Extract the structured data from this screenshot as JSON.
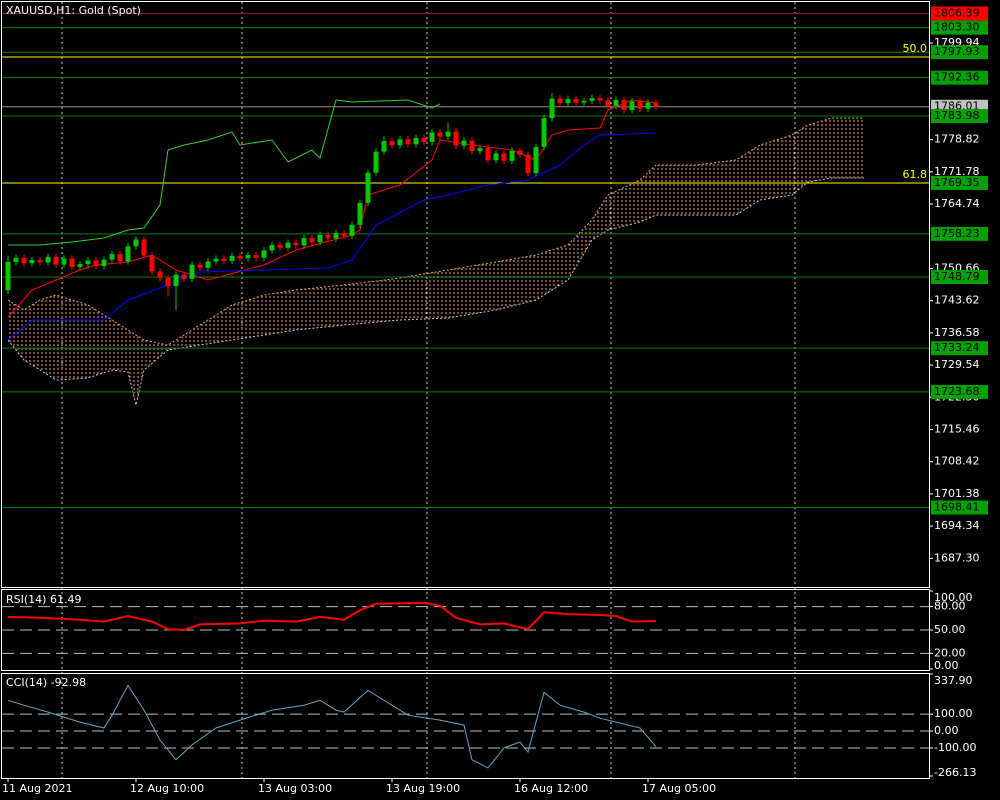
{
  "chart_data": [
    {
      "type": "candlestick",
      "title": "XAUUSD,H1:  Gold (Spot)",
      "xlim": [
        -1,
        115.25
      ],
      "xticks": [
        {
          "value": 0,
          "label": "11 Aug 2021"
        },
        {
          "value": 16,
          "label": "12 Aug 10:00"
        },
        {
          "value": 32,
          "label": "13 Aug 03:00"
        },
        {
          "value": 48,
          "label": "13 Aug 19:00"
        },
        {
          "value": 64,
          "label": "16 Aug 12:00"
        },
        {
          "value": 80,
          "label": "17 Aug 05:00"
        }
      ],
      "ylim": [
        1680.82,
        1809.34
      ],
      "yticks": [
        1799.94,
        1778.82,
        1771.78,
        1764.74,
        1750.66,
        1743.62,
        1736.58,
        1729.54,
        {
          "value": 1722.5,
          "label": "1722.50"
        },
        1715.46,
        1708.42,
        1701.38,
        1694.34,
        {
          "value": 1687.3,
          "label": "1687.30"
        }
      ],
      "up_color": "#00c800",
      "down_color": "#ff0000",
      "open": [
        1745.9,
        1752.1,
        1753.0,
        1751.8,
        1752.5,
        1752.0,
        1753.2,
        1751.5,
        1752.8,
        1751.0,
        1751.6,
        1752.4,
        1751.2,
        1752.6,
        1753.8,
        1752.2,
        1755.5,
        1757.0,
        1753.5,
        1750.0,
        1748.6,
        1746.8,
        1749.3,
        1748.4,
        1751.5,
        1750.8,
        1752.2,
        1752.8,
        1752.3,
        1753.4,
        1752.9,
        1753.6,
        1753.0,
        1754.6,
        1755.8,
        1755.2,
        1756.3,
        1755.7,
        1757.3,
        1756.4,
        1758.0,
        1757.2,
        1758.4,
        1757.8,
        1760.2,
        1765.0,
        1771.6,
        1776.2,
        1778.5,
        1777.6,
        1778.9,
        1777.8,
        1779.2,
        1778.3,
        1780.4,
        1779.5,
        1780.6,
        1777.5,
        1778.6,
        1776.3,
        1777.0,
        1774.3,
        1775.8,
        1774.2,
        1776.4,
        1775.5,
        1771.5,
        1777.2,
        1783.5,
        1787.8,
        1786.8,
        1787.7,
        1786.9,
        1787.3,
        1787.9,
        1787.4,
        1786.2,
        1787.5,
        1785.3,
        1787.2,
        1785.6,
        1786.9
      ],
      "high": [
        1753.5,
        1753.7,
        1753.7,
        1753.2,
        1753.2,
        1753.9,
        1753.9,
        1753.5,
        1753.5,
        1752.3,
        1753.1,
        1753.1,
        1753.3,
        1754.5,
        1754.5,
        1756.2,
        1757.7,
        1757.7,
        1754.2,
        1750.7,
        1749.3,
        1750.0,
        1750.0,
        1752.2,
        1752.2,
        1752.9,
        1753.5,
        1753.5,
        1754.1,
        1754.1,
        1754.3,
        1754.3,
        1755.3,
        1756.5,
        1756.5,
        1757.0,
        1757.0,
        1758.0,
        1758.0,
        1758.7,
        1758.7,
        1759.1,
        1759.1,
        1760.9,
        1765.7,
        1772.3,
        1776.9,
        1779.6,
        1779.2,
        1779.6,
        1779.6,
        1779.9,
        1779.9,
        1781.1,
        1781.1,
        1782.5,
        1781.3,
        1779.3,
        1779.3,
        1777.7,
        1777.7,
        1776.5,
        1776.5,
        1777.1,
        1777.1,
        1776.2,
        1777.9,
        1784.2,
        1789.0,
        1788.5,
        1788.4,
        1788.4,
        1788.0,
        1788.6,
        1788.6,
        1788.1,
        1788.2,
        1788.2,
        1787.9,
        1787.9,
        1787.6,
        1787.6
      ],
      "low": [
        1745.0,
        1751.4,
        1751.1,
        1751.1,
        1751.3,
        1751.3,
        1750.8,
        1750.8,
        1750.3,
        1750.3,
        1750.9,
        1750.5,
        1750.5,
        1751.9,
        1751.5,
        1751.5,
        1754.8,
        1752.8,
        1749.3,
        1747.9,
        1744.5,
        1741.6,
        1747.7,
        1747.7,
        1750.1,
        1750.1,
        1751.5,
        1751.6,
        1751.6,
        1752.2,
        1752.2,
        1752.3,
        1752.3,
        1753.9,
        1754.5,
        1754.5,
        1755.0,
        1755.0,
        1755.7,
        1755.7,
        1756.5,
        1756.5,
        1757.1,
        1757.1,
        1759.5,
        1764.3,
        1770.9,
        1775.5,
        1776.9,
        1776.9,
        1777.1,
        1777.1,
        1777.6,
        1777.6,
        1778.8,
        1778.8,
        1776.8,
        1776.8,
        1775.6,
        1775.6,
        1773.6,
        1773.6,
        1773.5,
        1773.5,
        1774.8,
        1770.8,
        1770.8,
        1776.5,
        1782.8,
        1786.1,
        1786.1,
        1786.2,
        1786.2,
        1786.6,
        1786.7,
        1785.5,
        1785.5,
        1784.6,
        1784.6,
        1784.9,
        1784.9,
        1785.3
      ],
      "close": [
        1752.1,
        1753.0,
        1751.8,
        1752.5,
        1752.0,
        1753.2,
        1751.5,
        1752.8,
        1751.0,
        1751.6,
        1752.4,
        1751.2,
        1752.6,
        1753.8,
        1752.2,
        1755.5,
        1757.0,
        1753.5,
        1750.0,
        1748.6,
        1746.8,
        1749.3,
        1748.4,
        1751.5,
        1750.8,
        1752.2,
        1752.8,
        1752.3,
        1753.4,
        1752.9,
        1753.6,
        1753.0,
        1754.6,
        1755.8,
        1755.2,
        1756.3,
        1755.7,
        1757.3,
        1756.4,
        1758.0,
        1757.2,
        1758.4,
        1757.8,
        1760.2,
        1765.0,
        1771.6,
        1776.2,
        1778.5,
        1777.6,
        1778.9,
        1777.8,
        1779.2,
        1778.3,
        1780.4,
        1779.5,
        1780.6,
        1777.5,
        1778.6,
        1776.3,
        1777.0,
        1774.3,
        1775.8,
        1774.2,
        1776.4,
        1775.5,
        1771.5,
        1777.2,
        1783.5,
        1787.8,
        1786.8,
        1787.7,
        1786.9,
        1787.3,
        1787.9,
        1787.4,
        1786.2,
        1787.5,
        1785.3,
        1787.2,
        1785.6,
        1786.9,
        1786.0
      ],
      "cloud": {
        "color_a": "#f4a460",
        "color_b": "#d8bfd8",
        "x": [
          0,
          2,
          4,
          6,
          10,
          13,
          15,
          16,
          17,
          20,
          24,
          28,
          32,
          36,
          42,
          49,
          55,
          61,
          66,
          70,
          73,
          75,
          79,
          81,
          86,
          91,
          94,
          98,
          100,
          103,
          107
        ],
        "a": [
          1743.77,
          1741.58,
          1743.77,
          1744.86,
          1742.67,
          1739.4,
          1737.21,
          1736.12,
          1735.02,
          1733.93,
          1738.3,
          1742.67,
          1744.86,
          1745.95,
          1747.05,
          1748.58,
          1750.32,
          1752.07,
          1753.6,
          1755.79,
          1761.25,
          1766.72,
          1770.0,
          1773.27,
          1773.27,
          1774.37,
          1777.65,
          1779.83,
          1782.02,
          1783.55,
          1783.55
        ],
        "b": [
          1735.02,
          1730.65,
          1728.47,
          1726.28,
          1726.72,
          1728.47,
          1728.03,
          1720.82,
          1728.47,
          1732.84,
          1733.93,
          1735.02,
          1736.12,
          1737.21,
          1738.3,
          1739.4,
          1739.83,
          1741.58,
          1743.77,
          1748.14,
          1756.88,
          1759.07,
          1760.82,
          1762.35,
          1762.35,
          1762.35,
          1765.62,
          1766.72,
          1769.56,
          1770.43,
          1770.43
        ]
      },
      "lines": [
        {
          "color": "#ff0000",
          "x": [
            0,
            3,
            6,
            9,
            11,
            15,
            18,
            21,
            25,
            32,
            36,
            43,
            44,
            45,
            49,
            53,
            54,
            58,
            63,
            66,
            68,
            70,
            74,
            75,
            78,
            81
          ],
          "values": [
            1740.0,
            1745.95,
            1748.14,
            1750.32,
            1751.42,
            1752.07,
            1753.6,
            1750.32,
            1748.14,
            1751.42,
            1754.7,
            1757.98,
            1759.07,
            1766.72,
            1768.9,
            1774.37,
            1778.74,
            1777.65,
            1776.55,
            1774.37,
            1779.83,
            1780.92,
            1781.36,
            1785.3,
            1787.48,
            1786.83
          ]
        },
        {
          "color": "#0000ff",
          "x": [
            0,
            3,
            12,
            15,
            20,
            24,
            32,
            40,
            43,
            46,
            52,
            55,
            60,
            65,
            69,
            72,
            74,
            81
          ],
          "values": [
            1735.02,
            1739.4,
            1739.4,
            1743.77,
            1747.05,
            1749.89,
            1750.32,
            1750.76,
            1752.51,
            1760.16,
            1765.62,
            1766.72,
            1768.9,
            1770.0,
            1773.27,
            1777.65,
            1779.83,
            1780.27
          ]
        },
        {
          "color": "#32cd32",
          "x": [
            0,
            4,
            8,
            12,
            15,
            17,
            19,
            20,
            22,
            25,
            28,
            29,
            33,
            35,
            38,
            39,
            41,
            43,
            50,
            53,
            54
          ],
          "values": [
            1755.79,
            1755.79,
            1756.45,
            1757.32,
            1759.07,
            1759.5,
            1764.53,
            1776.55,
            1777.65,
            1778.74,
            1780.49,
            1777.65,
            1778.74,
            1773.93,
            1776.55,
            1774.81,
            1787.48,
            1787.04,
            1787.48,
            1785.73,
            1786.61
          ]
        }
      ],
      "levels": [
        {
          "value": 1806.39,
          "label": "1806.39",
          "color": "#c00000",
          "box": "#ff0000"
        },
        {
          "value": 1803.3,
          "label": "1803.30",
          "color": "#008000",
          "box": "#00a000"
        },
        {
          "value": 1797.93,
          "label": "1797.93",
          "color": "#008000",
          "box": "#00a000"
        },
        {
          "value": 1792.36,
          "label": "1792.36",
          "color": "#008000",
          "box": "#00a000"
        },
        {
          "value": 1786.01,
          "label": "1786.01",
          "color": "#909090",
          "box": "#c0c0c0"
        },
        {
          "value": 1783.98,
          "label": "1783.98",
          "color": "#008000",
          "box": "#00a000"
        },
        {
          "value": 1769.35,
          "label": "1769.35",
          "color": "#008000",
          "box": "#00a000"
        },
        {
          "value": 1758.23,
          "label": "1758.23",
          "color": "#008000",
          "box": "#00a000"
        },
        {
          "value": 1748.79,
          "label": "1748.79",
          "color": "#008000",
          "box": "#00a000"
        },
        {
          "value": 1733.24,
          "label": "1733.24",
          "color": "#008000",
          "box": "#00a000"
        },
        {
          "value": 1723.68,
          "label": "1723.68",
          "color": "#008000",
          "box": "#00a000"
        },
        {
          "value": 1698.41,
          "label": "1698.41",
          "color": "#008000",
          "box": "#00a000"
        }
      ],
      "fib": {
        "color": "#ffff00",
        "levels": [
          {
            "value": 1796.88,
            "label": "50.0"
          },
          {
            "value": 1769.35,
            "label": "61.8"
          }
        ]
      }
    },
    {
      "type": "line",
      "title": "RSI(14) 61.49",
      "color": "#ff0000",
      "ylim": [
        0,
        100
      ],
      "yticks": [
        {
          "value": 100,
          "label": "100.00"
        },
        {
          "value": 80,
          "label": "80.00"
        },
        {
          "value": 50,
          "label": "50.00"
        },
        {
          "value": 20,
          "label": "20.00"
        },
        {
          "value": 0,
          "label": "0.00"
        }
      ],
      "x": [
        0,
        4,
        9,
        12,
        15,
        18,
        20,
        22,
        24,
        29,
        32,
        36,
        39,
        42,
        44,
        46,
        52,
        54,
        56,
        59,
        62,
        65,
        67,
        70,
        74,
        76,
        78,
        81
      ],
      "values": [
        66.8,
        65.6,
        63.2,
        60.8,
        68.0,
        60.8,
        51.2,
        50.0,
        57.2,
        58.4,
        62.0,
        60.8,
        66.8,
        63.2,
        75.2,
        83.6,
        84.8,
        81.2,
        65.6,
        57.2,
        58.4,
        51.2,
        72.8,
        70.4,
        69.2,
        68.0,
        60.8,
        61.49
      ]
    },
    {
      "type": "line",
      "title": "CCI(14) -92.98",
      "color": "#5fa8c0",
      "ylim": [
        -266.13,
        337.9
      ],
      "yticks": [
        {
          "value": 337.9,
          "label": "337.90"
        },
        {
          "value": 100,
          "label": "100.00"
        },
        {
          "value": 0,
          "label": "0.00"
        },
        {
          "value": -100,
          "label": "-100.00"
        },
        {
          "value": -266.13,
          "label": "-266.13"
        }
      ],
      "x": [
        0,
        2,
        5,
        9,
        12,
        13,
        15,
        17,
        19,
        21,
        23,
        26,
        29,
        33,
        37,
        39,
        41,
        42,
        45,
        48,
        50,
        54,
        57,
        58,
        60,
        62,
        64,
        65,
        67,
        69,
        72,
        74,
        76,
        79,
        81
      ],
      "values": [
        182,
        153,
        112,
        53,
        18,
        94,
        270,
        124,
        -53,
        -170,
        -82,
        18,
        65,
        124,
        153,
        182,
        124,
        112,
        241,
        153,
        94,
        65,
        35,
        -170,
        -218,
        -100,
        -65,
        -124,
        229,
        153,
        112,
        76,
        53,
        18,
        -92.98
      ]
    }
  ]
}
